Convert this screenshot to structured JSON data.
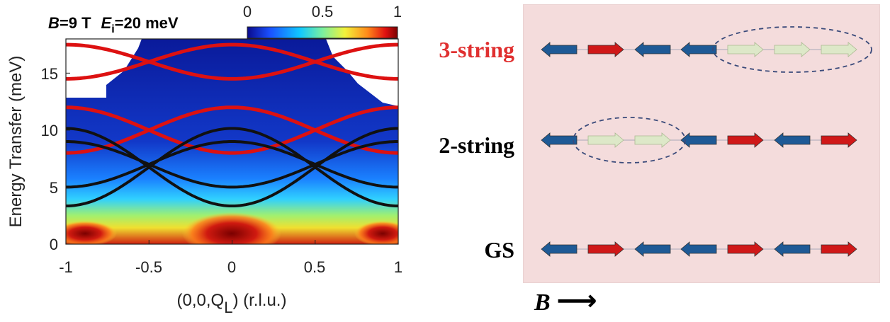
{
  "figure": {
    "left_panel": {
      "title": {
        "b_symbol": "B",
        "b_value": "=9 T",
        "e_symbol": "E",
        "e_subscript": "i",
        "e_value": "=20 meV"
      },
      "colorbar": {
        "tick_labels": [
          "0",
          "0.5",
          "1"
        ],
        "colors": [
          "#0a0a8c",
          "#1a50ff",
          "#10c8ff",
          "#7af0a0",
          "#f2f23a",
          "#ff8a1a",
          "#e01010",
          "#7a0000"
        ]
      },
      "chart_data": {
        "type": "heatmap",
        "xlabel_prefix": "(0,0,Q",
        "xlabel_subscript": "L",
        "xlabel_suffix": ") (r.l.u.)",
        "ylabel": "Energy Transfer (meV)",
        "xlim": [
          -1,
          1
        ],
        "ylim": [
          0,
          18
        ],
        "xticks": [
          "-1",
          "-0.5",
          "0",
          "0.5",
          "1"
        ],
        "yticks": [
          "0",
          "5",
          "10",
          "15"
        ],
        "xtick_values": [
          -1,
          -0.5,
          0,
          0.5,
          1
        ],
        "ytick_values": [
          0,
          5,
          10,
          15
        ],
        "dispersion_series": [
          {
            "color": "#dd1111",
            "center": 16,
            "amplitude": 1.5,
            "shifted": false
          },
          {
            "color": "#dd1111",
            "center": 16,
            "amplitude": 1.5,
            "shifted": true
          },
          {
            "color": "#dd1111",
            "center": 10,
            "amplitude": 2.0,
            "shifted": false
          },
          {
            "color": "#dd1111",
            "center": 10,
            "amplitude": 2.0,
            "shifted": true
          },
          {
            "color": "#111111",
            "center": 6.75,
            "amplitude": 3.4,
            "shifted": false
          },
          {
            "color": "#111111",
            "center": 6.75,
            "amplitude": 3.4,
            "shifted": true
          },
          {
            "color": "#111111",
            "center": 7.0,
            "amplitude": 2.0,
            "shifted": false
          },
          {
            "color": "#111111",
            "center": 7.0,
            "amplitude": 2.0,
            "shifted": true
          }
        ]
      }
    },
    "right_panel": {
      "background": "#f4dcdc",
      "rows": [
        {
          "label": "3-string",
          "label_color": "#e03030",
          "arrows": [
            "left",
            "right",
            "left",
            "left",
            "right-pale",
            "right-pale",
            "right-pale"
          ],
          "ellipse": [
            4,
            6
          ]
        },
        {
          "label": "2-string",
          "label_color": "#000000",
          "arrows": [
            "left",
            "right-pale",
            "right-pale",
            "left",
            "right",
            "left",
            "right"
          ],
          "ellipse": [
            1,
            2
          ]
        },
        {
          "label": "GS",
          "label_color": "#000000",
          "arrows": [
            "left",
            "right",
            "left",
            "left",
            "right",
            "left",
            "right"
          ],
          "ellipse": null
        }
      ],
      "arrow_colors": {
        "left": "#1e5a96",
        "right": "#d01818",
        "right-pale": "#dde8c8"
      },
      "field_label": "B",
      "field_arrow": "⟶"
    }
  }
}
